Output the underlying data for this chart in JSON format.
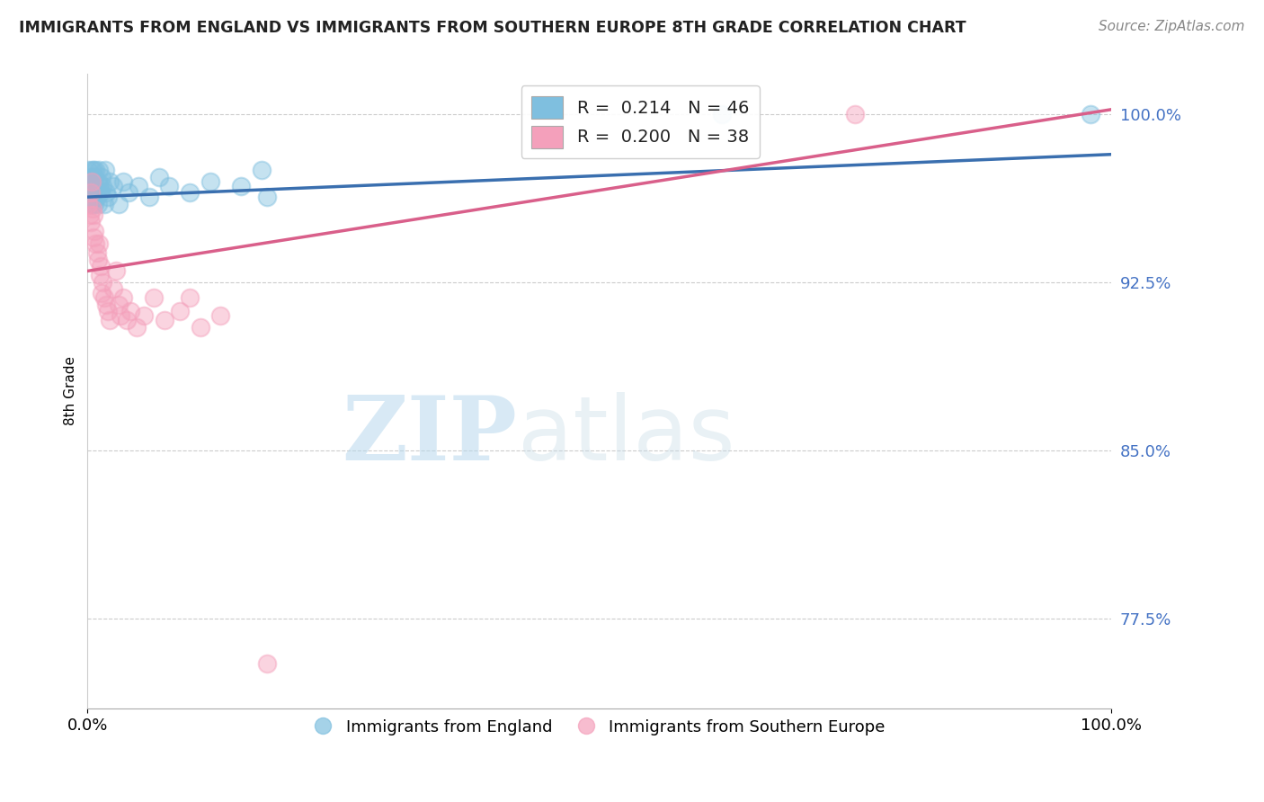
{
  "title": "IMMIGRANTS FROM ENGLAND VS IMMIGRANTS FROM SOUTHERN EUROPE 8TH GRADE CORRELATION CHART",
  "source": "Source: ZipAtlas.com",
  "ylabel": "8th Grade",
  "xlim": [
    0.0,
    1.0
  ],
  "ylim": [
    0.735,
    1.018
  ],
  "yticks": [
    0.775,
    0.85,
    0.925,
    1.0
  ],
  "ytick_labels": [
    "77.5%",
    "85.0%",
    "92.5%",
    "100.0%"
  ],
  "xtick_labels": [
    "0.0%",
    "100.0%"
  ],
  "xticks": [
    0.0,
    1.0
  ],
  "blue_color": "#7fbfdf",
  "pink_color": "#f4a0bb",
  "blue_line_color": "#3a6faf",
  "pink_line_color": "#d95f8a",
  "legend_R_blue": "0.214",
  "legend_N_blue": "46",
  "legend_R_pink": "0.200",
  "legend_N_pink": "38",
  "watermark_zip": "ZIP",
  "watermark_atlas": "atlas",
  "blue_line_x0": 0.0,
  "blue_line_y0": 0.963,
  "blue_line_x1": 1.0,
  "blue_line_y1": 0.982,
  "pink_line_x0": 0.0,
  "pink_line_y0": 0.93,
  "pink_line_x1": 1.0,
  "pink_line_y1": 1.002,
  "blue_x": [
    0.001,
    0.001,
    0.002,
    0.002,
    0.003,
    0.003,
    0.003,
    0.004,
    0.004,
    0.005,
    0.005,
    0.005,
    0.006,
    0.006,
    0.007,
    0.007,
    0.008,
    0.008,
    0.009,
    0.01,
    0.01,
    0.011,
    0.012,
    0.013,
    0.014,
    0.015,
    0.016,
    0.017,
    0.018,
    0.02,
    0.022,
    0.025,
    0.03,
    0.035,
    0.04,
    0.05,
    0.06,
    0.07,
    0.08,
    0.1,
    0.12,
    0.15,
    0.17,
    0.175,
    0.62,
    0.98
  ],
  "blue_y": [
    0.975,
    0.968,
    0.971,
    0.963,
    0.965,
    0.972,
    0.96,
    0.975,
    0.966,
    0.965,
    0.97,
    0.96,
    0.975,
    0.968,
    0.972,
    0.96,
    0.968,
    0.975,
    0.963,
    0.97,
    0.96,
    0.975,
    0.968,
    0.965,
    0.972,
    0.968,
    0.96,
    0.975,
    0.965,
    0.963,
    0.97,
    0.968,
    0.96,
    0.97,
    0.965,
    0.968,
    0.963,
    0.972,
    0.968,
    0.965,
    0.97,
    0.968,
    0.975,
    0.963,
    1.0,
    1.0
  ],
  "pink_x": [
    0.001,
    0.002,
    0.003,
    0.003,
    0.004,
    0.005,
    0.006,
    0.006,
    0.007,
    0.008,
    0.009,
    0.01,
    0.011,
    0.012,
    0.013,
    0.014,
    0.015,
    0.016,
    0.018,
    0.02,
    0.022,
    0.025,
    0.028,
    0.03,
    0.032,
    0.035,
    0.038,
    0.042,
    0.048,
    0.055,
    0.065,
    0.075,
    0.09,
    0.1,
    0.11,
    0.13,
    0.175,
    0.75
  ],
  "pink_y": [
    0.96,
    0.955,
    0.952,
    0.965,
    0.97,
    0.958,
    0.945,
    0.955,
    0.948,
    0.942,
    0.938,
    0.935,
    0.942,
    0.928,
    0.932,
    0.92,
    0.925,
    0.918,
    0.915,
    0.912,
    0.908,
    0.922,
    0.93,
    0.915,
    0.91,
    0.918,
    0.908,
    0.912,
    0.905,
    0.91,
    0.918,
    0.908,
    0.912,
    0.918,
    0.905,
    0.91,
    0.755,
    1.0
  ]
}
